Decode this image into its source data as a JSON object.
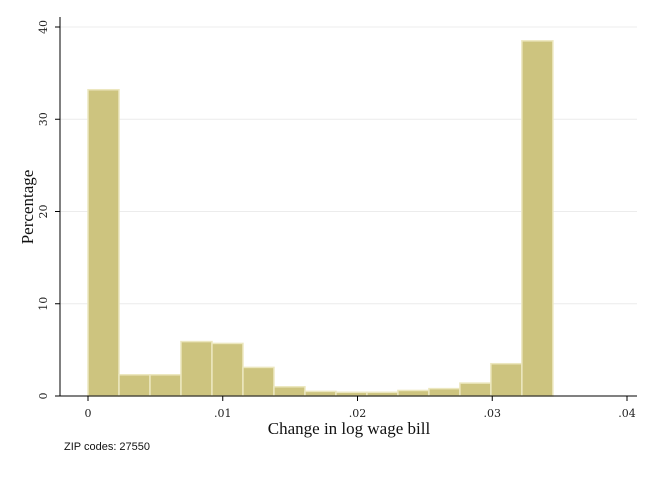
{
  "chart_data": {
    "type": "bar",
    "subtype": "histogram",
    "title": "",
    "xlabel": "Change in log wage bill",
    "ylabel": "Percentage",
    "xlim": [
      0,
      0.04
    ],
    "ylim": [
      0,
      40
    ],
    "x_ticks": [
      0,
      0.01,
      0.02,
      0.03,
      0.04
    ],
    "x_tick_labels": [
      "0",
      ".01",
      ".02",
      ".03",
      ".04"
    ],
    "y_ticks": [
      0,
      10,
      20,
      30,
      40
    ],
    "y_tick_labels": [
      "0",
      "10",
      "20",
      "30",
      "40"
    ],
    "grid": "horizontal",
    "bar_color": "#cdc47f",
    "bar_edge_color": "#ece7bf",
    "bins": [
      {
        "x0": 0.0,
        "x1": 0.0023,
        "value": 33.2
      },
      {
        "x0": 0.0023,
        "x1": 0.0046,
        "value": 2.3
      },
      {
        "x0": 0.0046,
        "x1": 0.0069,
        "value": 2.3
      },
      {
        "x0": 0.0069,
        "x1": 0.0092,
        "value": 5.9
      },
      {
        "x0": 0.0092,
        "x1": 0.0115,
        "value": 5.7
      },
      {
        "x0": 0.0115,
        "x1": 0.0138,
        "value": 3.1
      },
      {
        "x0": 0.0138,
        "x1": 0.0161,
        "value": 1.0
      },
      {
        "x0": 0.0161,
        "x1": 0.0184,
        "value": 0.5
      },
      {
        "x0": 0.0184,
        "x1": 0.0207,
        "value": 0.4
      },
      {
        "x0": 0.0207,
        "x1": 0.023,
        "value": 0.4
      },
      {
        "x0": 0.023,
        "x1": 0.0253,
        "value": 0.6
      },
      {
        "x0": 0.0253,
        "x1": 0.0276,
        "value": 0.8
      },
      {
        "x0": 0.0276,
        "x1": 0.0299,
        "value": 1.4
      },
      {
        "x0": 0.0299,
        "x1": 0.0322,
        "value": 3.5
      },
      {
        "x0": 0.0322,
        "x1": 0.0345,
        "value": 38.5
      }
    ]
  },
  "note": "ZIP codes: 27550"
}
